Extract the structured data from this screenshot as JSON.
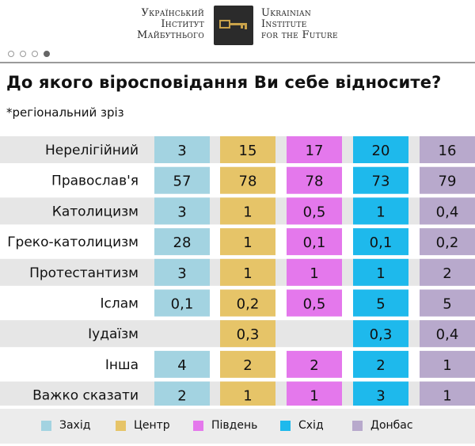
{
  "header": {
    "brand_ua": [
      "Український",
      "Інститут",
      "Майбутнього"
    ],
    "brand_en": [
      "Ukrainian",
      "Institute",
      "for the Future"
    ],
    "logo_icon": "key-icon"
  },
  "pager": {
    "total": 4,
    "active": 4
  },
  "title": "До якого віросповідання Ви себе відносите?",
  "subtitle": "*регіональний зріз",
  "chart_data": {
    "type": "table",
    "categories": [
      "Нерелігійний",
      "Православ'я",
      "Католицизм",
      "Греко-католицизм",
      "Протестантизм",
      "Іслам",
      "Іудаїзм",
      "Інша",
      "Важко сказати"
    ],
    "series": [
      {
        "name": "Захід",
        "color": "#a3d3e1",
        "values": [
          "3",
          "57",
          "3",
          "28",
          "3",
          "0,1",
          "",
          "4",
          "2"
        ]
      },
      {
        "name": "Центр",
        "color": "#e6c468",
        "values": [
          "15",
          "78",
          "1",
          "1",
          "1",
          "0,2",
          "0,3",
          "2",
          "1"
        ]
      },
      {
        "name": "Південь",
        "color": "#e478ec",
        "values": [
          "17",
          "78",
          "0,5",
          "0,1",
          "1",
          "0,5",
          "",
          "2",
          "1"
        ]
      },
      {
        "name": "Схід",
        "color": "#1eb9ec",
        "values": [
          "20",
          "73",
          "1",
          "0,1",
          "1",
          "5",
          "0,3",
          "2",
          "3"
        ]
      },
      {
        "name": "Донбас",
        "color": "#b8a9cc",
        "values": [
          "16",
          "79",
          "0,4",
          "0,2",
          "2",
          "5",
          "0,4",
          "1",
          "1"
        ]
      }
    ]
  }
}
